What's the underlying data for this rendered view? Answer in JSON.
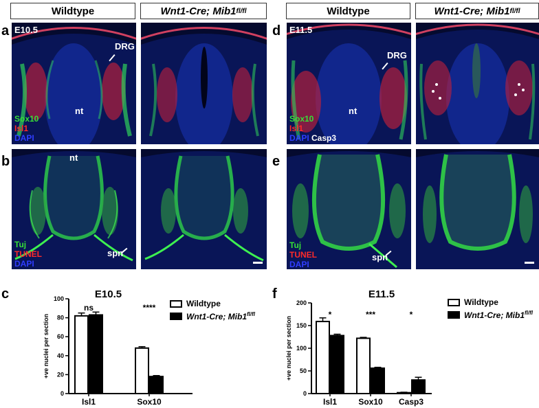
{
  "headers": {
    "a": "Wildtype",
    "b_main": "Wnt1-Cre; Mib1",
    "b_sup": "fl/fl",
    "c": "Wildtype",
    "d_main": "Wnt1-Cre; Mib1",
    "d_sup": "fl/fl"
  },
  "panel_labels": {
    "a": "a",
    "b": "b",
    "c": "c",
    "d": "d",
    "e": "e",
    "f": "f"
  },
  "stages": {
    "a": "E10.5",
    "d": "E11.5"
  },
  "legends": {
    "a": [
      "Sox10",
      "Isl1",
      "DAPI"
    ],
    "b": [
      "Tuj",
      "TUNEL",
      "DAPI"
    ],
    "d": [
      "Sox10",
      "Isl1",
      "DAPI",
      "Casp3"
    ],
    "e": [
      "Tuj",
      "TUNEL",
      "DAPI"
    ]
  },
  "annotations": {
    "drg": "DRG",
    "nt": "nt",
    "spn": "spn"
  },
  "colors": {
    "green": "#36e036",
    "red": "#ff2a2a",
    "blue": "#2f3dff",
    "background": "#050a2e"
  },
  "chart_legend": {
    "wt": "Wildtype",
    "mut_main": "Wnt1-Cre; Mib1",
    "mut_sup": "fl/fl"
  },
  "chart_data": [
    {
      "type": "bar",
      "title": "E10.5",
      "ylabel": "+ve nuclei per section",
      "categories": [
        "Isl1",
        "Sox10"
      ],
      "series": [
        {
          "name": "Wildtype",
          "values": [
            82,
            48
          ],
          "errors": [
            3,
            1.5
          ]
        },
        {
          "name": "Wnt1-Cre; Mib1fl/fl",
          "values": [
            83,
            18
          ],
          "errors": [
            3,
            1
          ]
        }
      ],
      "ylim": [
        0,
        100
      ],
      "yticks": [
        0,
        20,
        40,
        60,
        80,
        100
      ],
      "significance": [
        "ns",
        "****"
      ]
    },
    {
      "type": "bar",
      "title": "E11.5",
      "ylabel": "+ve nuclei per section",
      "categories": [
        "Isl1",
        "Sox10",
        "Casp3"
      ],
      "series": [
        {
          "name": "Wildtype",
          "values": [
            159,
            122,
            2
          ],
          "errors": [
            8,
            2,
            1
          ]
        },
        {
          "name": "Wnt1-Cre; Mib1fl/fl",
          "values": [
            128,
            56,
            30
          ],
          "errors": [
            3,
            2,
            6
          ]
        }
      ],
      "ylim": [
        0,
        200
      ],
      "yticks": [
        0,
        50,
        100,
        150,
        200
      ],
      "significance": [
        "*",
        "***",
        "*"
      ]
    }
  ]
}
